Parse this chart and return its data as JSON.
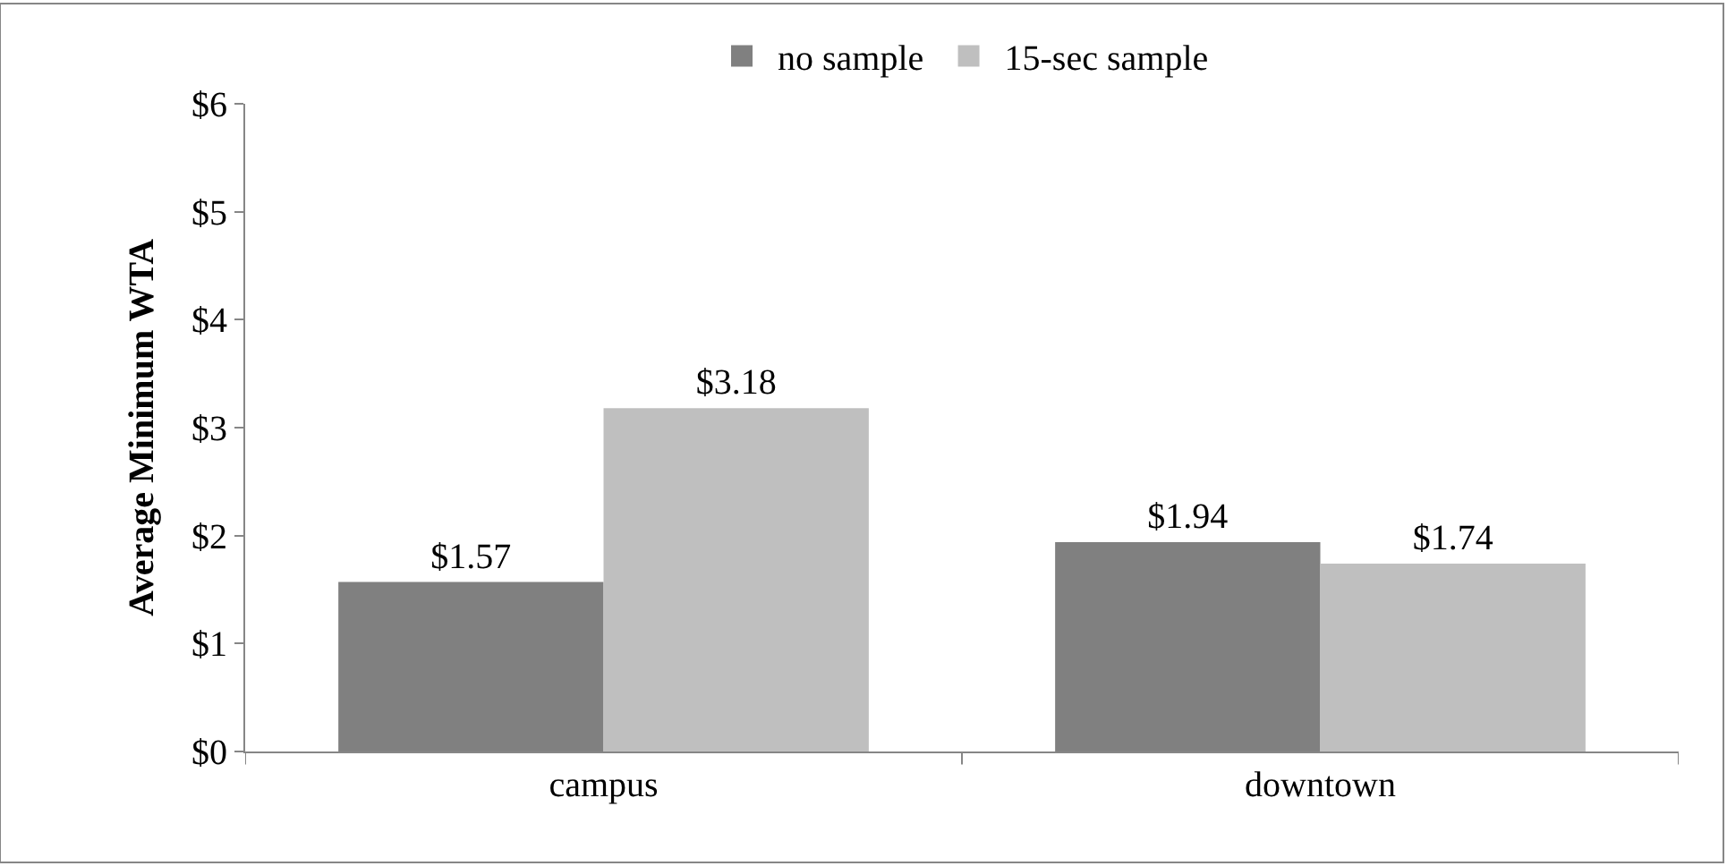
{
  "chart_data": {
    "type": "bar",
    "ylabel": "Average Minimum WTA",
    "categories": [
      "campus",
      "downtown"
    ],
    "series": [
      {
        "name": "no sample",
        "color": "#808080",
        "values": [
          1.57,
          1.94
        ],
        "value_labels": [
          "$1.57",
          "$1.94"
        ]
      },
      {
        "name": "15-sec sample",
        "color": "#bfbfbf",
        "values": [
          3.18,
          1.74
        ],
        "value_labels": [
          "$3.18",
          "$1.74"
        ]
      }
    ],
    "ylim": [
      0,
      6
    ],
    "yticks": [
      {
        "value": 0,
        "label": "$0"
      },
      {
        "value": 1,
        "label": "$1"
      },
      {
        "value": 2,
        "label": "$2"
      },
      {
        "value": 3,
        "label": "$3"
      },
      {
        "value": 4,
        "label": "$4"
      },
      {
        "value": 5,
        "label": "$5"
      },
      {
        "value": 6,
        "label": "$6"
      }
    ],
    "legend": "top"
  }
}
